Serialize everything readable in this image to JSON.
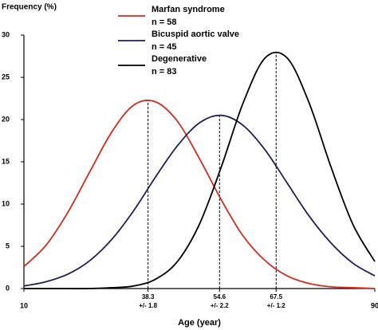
{
  "chart_data": {
    "type": "line",
    "y_axis_title": "Frequency (%)",
    "x_axis_title": "Age (year)",
    "xlim": [
      10,
      90
    ],
    "ylim": [
      0,
      30
    ],
    "xticks": [
      10,
      90
    ],
    "yticks": [
      0,
      5,
      10,
      15,
      20,
      25,
      30
    ],
    "x": [
      10,
      15,
      20,
      25,
      30,
      35,
      40,
      45,
      50,
      55,
      60,
      65,
      70,
      75,
      80,
      85,
      90
    ],
    "series": [
      {
        "name": "Marfan syndrome",
        "sample_size_label": "n = 58",
        "color": "#d62a1e",
        "values": [
          2.6,
          5.1,
          9.0,
          13.8,
          18.5,
          21.7,
          22.1,
          19.8,
          15.4,
          10.5,
          6.2,
          3.3,
          1.5,
          0.6,
          0.2,
          0.1,
          0.0
        ]
      },
      {
        "name": "Bicuspid aortic valve",
        "sample_size_label": "n = 45",
        "color": "#1e1e5a",
        "values": [
          0.3,
          0.8,
          1.7,
          3.3,
          5.8,
          9.2,
          13.2,
          16.9,
          19.6,
          20.5,
          19.3,
          16.4,
          12.5,
          8.6,
          5.4,
          3.0,
          1.5
        ]
      },
      {
        "name": "Degenerative",
        "sample_size_label": "n = 83",
        "color": "#000000",
        "values": [
          0.0,
          0.0,
          0.0,
          0.0,
          0.1,
          0.3,
          1.1,
          3.2,
          7.6,
          14.4,
          22.0,
          27.3,
          27.3,
          22.0,
          14.4,
          7.6,
          3.2
        ]
      }
    ],
    "annotations": [
      {
        "x": 38.3,
        "y": 22.3,
        "sd_label": "+/- 1.8"
      },
      {
        "x": 54.6,
        "y": 20.5,
        "sd_label": "+/- 2.2"
      },
      {
        "x": 67.5,
        "y": 28.0,
        "sd_label": "+/- 1.2"
      }
    ]
  }
}
